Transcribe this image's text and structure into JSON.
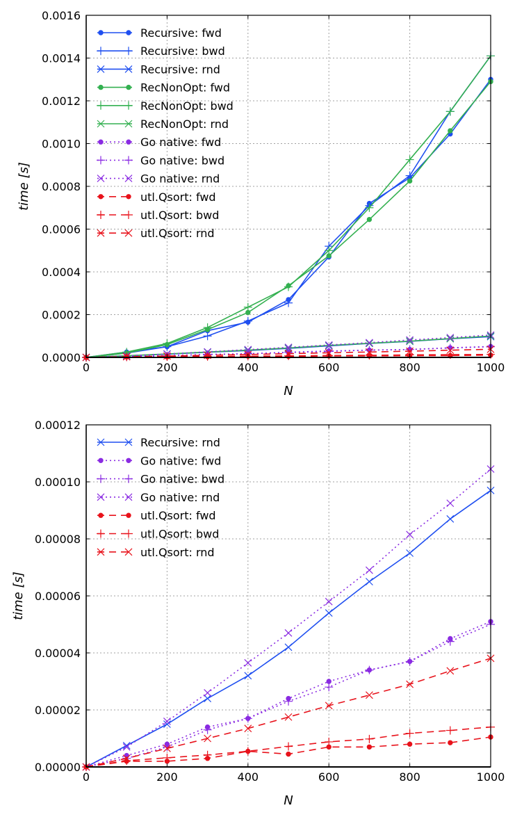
{
  "colors": {
    "recursive": "#1f4ff0",
    "recnonopt": "#33b050",
    "gonative": "#8a2be2",
    "utlqsort": "#e8121b",
    "grid": "#a0a0a0",
    "axis": "#000000"
  },
  "chart_data": [
    {
      "type": "line",
      "xlabel": "N",
      "ylabel": "time [s]",
      "xlim": [
        0,
        1000
      ],
      "ylim": [
        0,
        0.0016
      ],
      "xticks": [
        0,
        200,
        400,
        600,
        800,
        1000
      ],
      "xtick_labels": [
        "0",
        "200",
        "400",
        "600",
        "800",
        "1000"
      ],
      "yticks": [
        0,
        0.0002,
        0.0004,
        0.0006,
        0.0008,
        0.001,
        0.0012,
        0.0014,
        0.0016
      ],
      "ytick_labels": [
        "0.0000",
        "0.0002",
        "0.0004",
        "0.0006",
        "0.0008",
        "0.0010",
        "0.0012",
        "0.0014",
        "0.0016"
      ],
      "grid": true,
      "legend_position": "top-left",
      "x": [
        0,
        100,
        200,
        300,
        400,
        500,
        600,
        700,
        800,
        900,
        1000
      ],
      "series": [
        {
          "name": "Recursive: fwd",
          "color": "recursive",
          "marker": "dot",
          "linestyle": "solid",
          "values": [
            0,
            2.5e-05,
            5e-05,
            0.000125,
            0.000165,
            0.00027,
            0.00047,
            0.00072,
            0.00084,
            0.001045,
            0.0013
          ]
        },
        {
          "name": "Recursive: bwd",
          "color": "recursive",
          "marker": "plus",
          "linestyle": "solid",
          "values": [
            0,
            2e-05,
            5e-05,
            0.0001,
            0.00017,
            0.000255,
            0.00052,
            0.00071,
            0.00085,
            0.00115,
            0.00141
          ]
        },
        {
          "name": "Recursive: rnd",
          "color": "recursive",
          "marker": "x",
          "linestyle": "solid",
          "values": [
            0,
            7.5e-06,
            1.5e-05,
            2.4e-05,
            3.2e-05,
            4.2e-05,
            5.4e-05,
            6.5e-05,
            7.5e-05,
            8.7e-05,
            9.7e-05
          ]
        },
        {
          "name": "RecNonOpt: fwd",
          "color": "recnonopt",
          "marker": "dot",
          "linestyle": "solid",
          "values": [
            0,
            2e-05,
            6e-05,
            0.00013,
            0.00021,
            0.000335,
            0.000475,
            0.000645,
            0.000825,
            0.00106,
            0.00129
          ]
        },
        {
          "name": "RecNonOpt: bwd",
          "color": "recnonopt",
          "marker": "plus",
          "linestyle": "solid",
          "values": [
            0,
            2.5e-05,
            6.5e-05,
            0.00014,
            0.000235,
            0.00033,
            0.0005,
            0.0007,
            0.000925,
            0.00115,
            0.00141
          ]
        },
        {
          "name": "RecNonOpt: rnd",
          "color": "recnonopt",
          "marker": "x",
          "linestyle": "solid",
          "values": [
            0,
            8e-06,
            1.6e-05,
            2.5e-05,
            3.4e-05,
            4.4e-05,
            5.6e-05,
            6.6e-05,
            7.6e-05,
            8.8e-05,
            0.0001
          ]
        },
        {
          "name": "Go native: fwd",
          "color": "gonative",
          "marker": "dot",
          "linestyle": "dotted",
          "values": [
            0,
            4e-06,
            8e-06,
            1.4e-05,
            1.7e-05,
            2.4e-05,
            3e-05,
            3.4e-05,
            3.7e-05,
            4.5e-05,
            5.1e-05
          ]
        },
        {
          "name": "Go native: bwd",
          "color": "gonative",
          "marker": "plus",
          "linestyle": "dotted",
          "values": [
            0,
            3e-06,
            7e-06,
            1.3e-05,
            1.7e-05,
            2.3e-05,
            2.8e-05,
            3.4e-05,
            3.7e-05,
            4.4e-05,
            5e-05
          ]
        },
        {
          "name": "Go native: rnd",
          "color": "gonative",
          "marker": "x",
          "linestyle": "dotted",
          "values": [
            0,
            7e-06,
            1.6e-05,
            2.6e-05,
            3.65e-05,
            4.7e-05,
            5.8e-05,
            6.9e-05,
            8.15e-05,
            9.25e-05,
            0.0001045
          ]
        },
        {
          "name": "utl.Qsort: fwd",
          "color": "utlqsort",
          "marker": "dot",
          "linestyle": "dashed",
          "values": [
            0,
            2e-06,
            2e-06,
            3e-06,
            5.5e-06,
            4.5e-06,
            7e-06,
            7e-06,
            8e-06,
            8.5e-06,
            1.05e-05
          ]
        },
        {
          "name": "utl.Qsort: bwd",
          "color": "utlqsort",
          "marker": "plus",
          "linestyle": "dashed",
          "values": [
            0,
            2.2e-06,
            3.2e-06,
            4.2e-06,
            5.5e-06,
            7.2e-06,
            8.8e-06,
            9.8e-06,
            1.18e-05,
            1.28e-05,
            1.4e-05
          ]
        },
        {
          "name": "utl.Qsort: rnd",
          "color": "utlqsort",
          "marker": "x",
          "linestyle": "dashed",
          "values": [
            0,
            3e-06,
            6.5e-06,
            1e-05,
            1.35e-05,
            1.75e-05,
            2.15e-05,
            2.52e-05,
            2.9e-05,
            3.37e-05,
            3.81e-05
          ]
        }
      ]
    },
    {
      "type": "line",
      "xlabel": "N",
      "ylabel": "time [s]",
      "xlim": [
        0,
        1000
      ],
      "ylim": [
        0,
        0.00012
      ],
      "xticks": [
        0,
        200,
        400,
        600,
        800,
        1000
      ],
      "xtick_labels": [
        "0",
        "200",
        "400",
        "600",
        "800",
        "1000"
      ],
      "yticks": [
        0,
        2e-05,
        4e-05,
        6e-05,
        8e-05,
        0.0001,
        0.00012
      ],
      "ytick_labels": [
        "0.00000",
        "0.00002",
        "0.00004",
        "0.00006",
        "0.00008",
        "0.00010",
        "0.00012"
      ],
      "grid": true,
      "legend_position": "top-left",
      "x": [
        0,
        100,
        200,
        300,
        400,
        500,
        600,
        700,
        800,
        900,
        1000
      ],
      "series": [
        {
          "name": "Recursive: rnd",
          "color": "recursive",
          "marker": "x",
          "linestyle": "solid",
          "values": [
            0,
            7.5e-06,
            1.5e-05,
            2.4e-05,
            3.2e-05,
            4.2e-05,
            5.4e-05,
            6.5e-05,
            7.5e-05,
            8.7e-05,
            9.7e-05
          ]
        },
        {
          "name": "Go native: fwd",
          "color": "gonative",
          "marker": "dot",
          "linestyle": "dotted",
          "values": [
            0,
            4e-06,
            8e-06,
            1.4e-05,
            1.7e-05,
            2.4e-05,
            3e-05,
            3.4e-05,
            3.7e-05,
            4.5e-05,
            5.1e-05
          ]
        },
        {
          "name": "Go native: bwd",
          "color": "gonative",
          "marker": "plus",
          "linestyle": "dotted",
          "values": [
            0,
            3e-06,
            7e-06,
            1.3e-05,
            1.7e-05,
            2.3e-05,
            2.8e-05,
            3.4e-05,
            3.7e-05,
            4.4e-05,
            5e-05
          ]
        },
        {
          "name": "Go native: rnd",
          "color": "gonative",
          "marker": "x",
          "linestyle": "dotted",
          "values": [
            0,
            7e-06,
            1.6e-05,
            2.6e-05,
            3.65e-05,
            4.7e-05,
            5.8e-05,
            6.9e-05,
            8.15e-05,
            9.25e-05,
            0.0001045
          ]
        },
        {
          "name": "utl.Qsort: fwd",
          "color": "utlqsort",
          "marker": "dot",
          "linestyle": "dashed",
          "values": [
            0,
            2e-06,
            2e-06,
            3e-06,
            5.5e-06,
            4.5e-06,
            7e-06,
            7e-06,
            8e-06,
            8.5e-06,
            1.05e-05
          ]
        },
        {
          "name": "utl.Qsort: bwd",
          "color": "utlqsort",
          "marker": "plus",
          "linestyle": "dashed",
          "values": [
            0,
            2.2e-06,
            3.2e-06,
            4.2e-06,
            5.5e-06,
            7.2e-06,
            8.8e-06,
            9.8e-06,
            1.18e-05,
            1.28e-05,
            1.4e-05
          ]
        },
        {
          "name": "utl.Qsort: rnd",
          "color": "utlqsort",
          "marker": "x",
          "linestyle": "dashed",
          "values": [
            0,
            3e-06,
            6.5e-06,
            1e-05,
            1.35e-05,
            1.75e-05,
            2.15e-05,
            2.52e-05,
            2.9e-05,
            3.37e-05,
            3.81e-05
          ]
        }
      ]
    }
  ]
}
